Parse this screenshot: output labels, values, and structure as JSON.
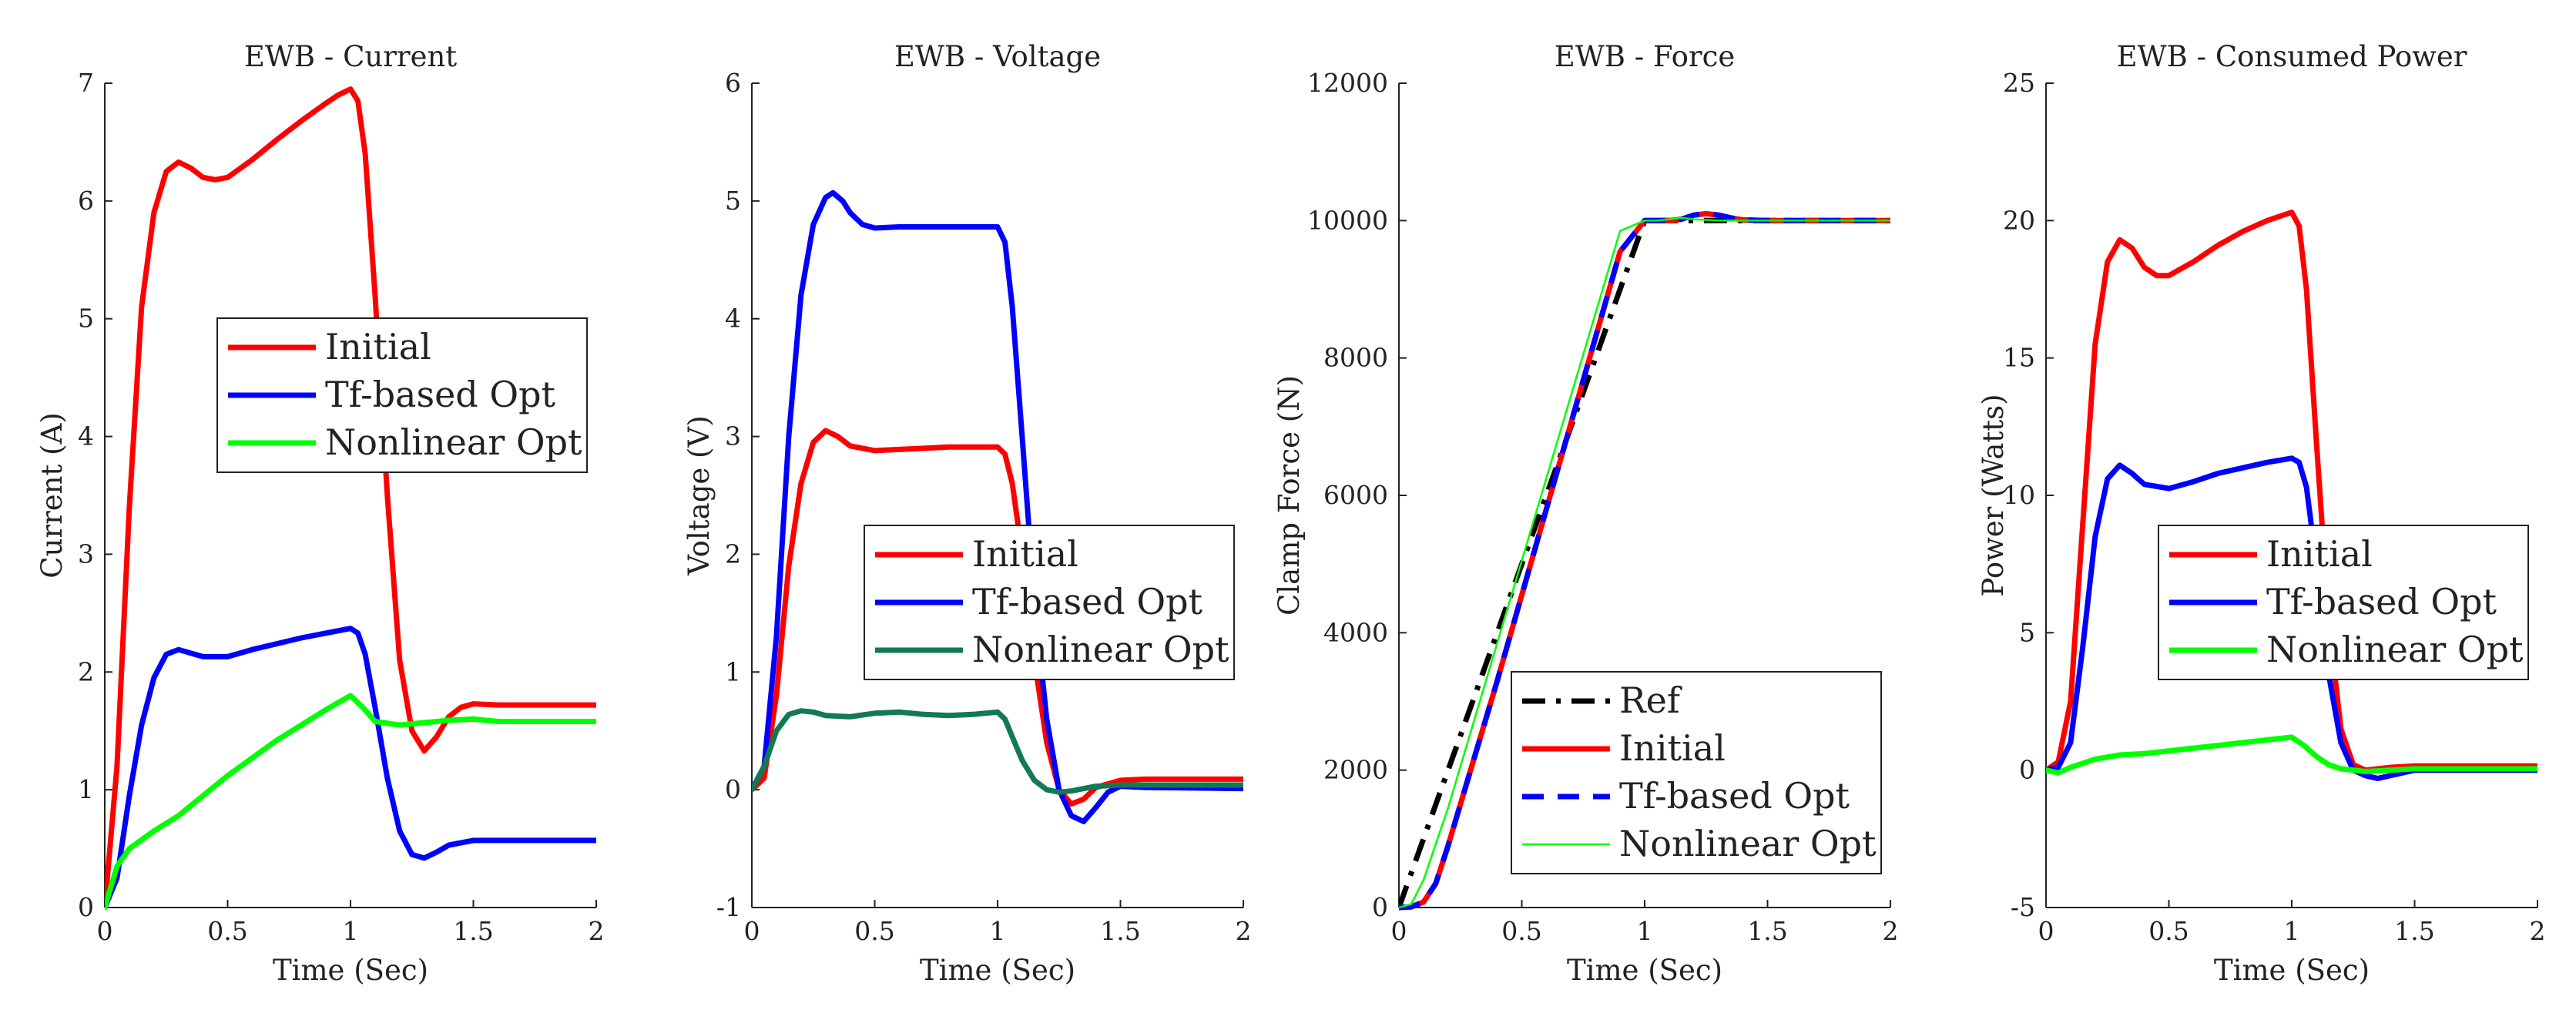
{
  "chart_data": [
    {
      "type": "line",
      "title": "EWB - Current",
      "xlabel": "Time (Sec)",
      "ylabel": "Current (A)",
      "xlim": [
        0,
        2
      ],
      "ylim": [
        0,
        7
      ],
      "xticks": [
        0,
        0.5,
        1,
        1.5,
        2
      ],
      "yticks": [
        0,
        1,
        2,
        3,
        4,
        5,
        6,
        7
      ],
      "xtick_labels": [
        "0",
        "0.5",
        "1",
        "1.5",
        "2"
      ],
      "ytick_labels": [
        "0",
        "1",
        "2",
        "3",
        "4",
        "5",
        "6",
        "7"
      ],
      "legend_position": "center",
      "series": [
        {
          "name": "Initial",
          "color": "#ff0000",
          "dash": "solid",
          "width": "thick",
          "x": [
            0,
            0.05,
            0.1,
            0.15,
            0.2,
            0.25,
            0.3,
            0.35,
            0.4,
            0.45,
            0.5,
            0.6,
            0.7,
            0.8,
            0.9,
            0.95,
            1.0,
            1.03,
            1.06,
            1.1,
            1.15,
            1.2,
            1.25,
            1.3,
            1.35,
            1.4,
            1.45,
            1.5,
            1.6,
            1.8,
            2.0
          ],
          "y": [
            0,
            1.2,
            3.4,
            5.1,
            5.9,
            6.25,
            6.33,
            6.28,
            6.2,
            6.18,
            6.2,
            6.35,
            6.52,
            6.68,
            6.83,
            6.9,
            6.95,
            6.85,
            6.4,
            5.2,
            3.5,
            2.1,
            1.5,
            1.33,
            1.45,
            1.62,
            1.7,
            1.73,
            1.72,
            1.72,
            1.72
          ]
        },
        {
          "name": "Tf-based Opt",
          "color": "#0000ff",
          "dash": "solid",
          "width": "thick",
          "x": [
            0,
            0.05,
            0.1,
            0.15,
            0.2,
            0.25,
            0.3,
            0.35,
            0.4,
            0.5,
            0.6,
            0.7,
            0.8,
            0.9,
            1.0,
            1.03,
            1.06,
            1.1,
            1.15,
            1.2,
            1.25,
            1.3,
            1.35,
            1.4,
            1.5,
            1.6,
            2.0
          ],
          "y": [
            0,
            0.25,
            0.95,
            1.55,
            1.95,
            2.15,
            2.19,
            2.16,
            2.13,
            2.13,
            2.19,
            2.24,
            2.29,
            2.33,
            2.37,
            2.33,
            2.15,
            1.7,
            1.1,
            0.65,
            0.45,
            0.42,
            0.47,
            0.53,
            0.57,
            0.57,
            0.57
          ]
        },
        {
          "name": "Nonlinear Opt",
          "color": "#00ff00",
          "dash": "solid",
          "width": "thick",
          "x": [
            0,
            0.05,
            0.1,
            0.2,
            0.3,
            0.4,
            0.5,
            0.6,
            0.7,
            0.8,
            0.9,
            1.0,
            1.05,
            1.1,
            1.2,
            1.3,
            1.4,
            1.5,
            1.6,
            1.8,
            2.0
          ],
          "y": [
            0,
            0.35,
            0.5,
            0.65,
            0.78,
            0.95,
            1.12,
            1.27,
            1.42,
            1.55,
            1.68,
            1.8,
            1.7,
            1.58,
            1.55,
            1.57,
            1.59,
            1.6,
            1.58,
            1.58,
            1.58
          ]
        }
      ]
    },
    {
      "type": "line",
      "title": "EWB - Voltage",
      "xlabel": "Time (Sec)",
      "ylabel": "Voltage (V)",
      "xlim": [
        0,
        2
      ],
      "ylim": [
        -1,
        6
      ],
      "xticks": [
        0,
        0.5,
        1,
        1.5,
        2
      ],
      "yticks": [
        -1,
        0,
        1,
        2,
        3,
        4,
        5,
        6
      ],
      "xtick_labels": [
        "0",
        "0.5",
        "1",
        "1.5",
        "2"
      ],
      "ytick_labels": [
        "-1",
        "0",
        "1",
        "2",
        "3",
        "4",
        "5",
        "6"
      ],
      "legend_position": "center-right",
      "series": [
        {
          "name": "Initial",
          "color": "#ff0000",
          "dash": "solid",
          "width": "thick",
          "x": [
            0,
            0.05,
            0.1,
            0.15,
            0.2,
            0.25,
            0.3,
            0.35,
            0.4,
            0.5,
            0.6,
            0.7,
            0.8,
            0.9,
            1.0,
            1.03,
            1.06,
            1.1,
            1.15,
            1.2,
            1.25,
            1.3,
            1.35,
            1.4,
            1.5,
            1.6,
            2.0
          ],
          "y": [
            0,
            0.1,
            0.8,
            1.9,
            2.6,
            2.95,
            3.05,
            3.0,
            2.92,
            2.88,
            2.89,
            2.9,
            2.91,
            2.91,
            2.91,
            2.85,
            2.6,
            2.0,
            1.1,
            0.4,
            0.0,
            -0.12,
            -0.08,
            0.02,
            0.08,
            0.09,
            0.09
          ]
        },
        {
          "name": "Tf-based Opt",
          "color": "#0000ff",
          "dash": "solid",
          "width": "thick",
          "x": [
            0,
            0.05,
            0.1,
            0.15,
            0.2,
            0.25,
            0.3,
            0.33,
            0.37,
            0.4,
            0.45,
            0.5,
            0.6,
            0.8,
            1.0,
            1.03,
            1.06,
            1.1,
            1.15,
            1.2,
            1.25,
            1.3,
            1.35,
            1.4,
            1.45,
            1.5,
            1.6,
            2.0
          ],
          "y": [
            0,
            0.2,
            1.3,
            3.0,
            4.2,
            4.8,
            5.03,
            5.07,
            5.0,
            4.9,
            4.8,
            4.77,
            4.78,
            4.78,
            4.78,
            4.65,
            4.1,
            3.0,
            1.6,
            0.6,
            0.0,
            -0.22,
            -0.27,
            -0.15,
            -0.02,
            0.03,
            0.02,
            0.01
          ]
        },
        {
          "name": "Nonlinear Opt",
          "color": "#117a53",
          "dash": "solid",
          "width": "thick",
          "x": [
            0,
            0.05,
            0.1,
            0.15,
            0.2,
            0.25,
            0.3,
            0.4,
            0.5,
            0.6,
            0.7,
            0.8,
            0.9,
            1.0,
            1.03,
            1.06,
            1.1,
            1.15,
            1.2,
            1.25,
            1.3,
            1.4,
            1.5,
            1.6,
            2.0
          ],
          "y": [
            0,
            0.2,
            0.5,
            0.64,
            0.67,
            0.66,
            0.63,
            0.62,
            0.65,
            0.66,
            0.64,
            0.63,
            0.64,
            0.66,
            0.6,
            0.45,
            0.25,
            0.08,
            0.0,
            -0.02,
            -0.01,
            0.03,
            0.04,
            0.04,
            0.04
          ]
        }
      ]
    },
    {
      "type": "line",
      "title": "EWB - Force",
      "xlabel": "Time (Sec)",
      "ylabel": "Clamp Force (N)",
      "xlim": [
        0,
        2
      ],
      "ylim": [
        0,
        12000
      ],
      "xticks": [
        0,
        0.5,
        1,
        1.5,
        2
      ],
      "yticks": [
        0,
        2000,
        4000,
        6000,
        8000,
        10000,
        12000
      ],
      "xtick_labels": [
        "0",
        "0.5",
        "1",
        "1.5",
        "2"
      ],
      "ytick_labels": [
        "0",
        "2000",
        "4000",
        "6000",
        "8000",
        "10000",
        "12000"
      ],
      "legend_position": "bottom-right",
      "series": [
        {
          "name": "Ref",
          "color": "#000000",
          "dash": "dashdot",
          "width": "thick",
          "x": [
            0,
            1,
            2
          ],
          "y": [
            0,
            10000,
            10000
          ]
        },
        {
          "name": "Initial",
          "color": "#ff0000",
          "dash": "solid",
          "width": "thick",
          "x": [
            0,
            0.05,
            0.1,
            0.15,
            0.2,
            0.3,
            0.4,
            0.5,
            0.6,
            0.7,
            0.8,
            0.9,
            1.0,
            1.1,
            1.15,
            1.2,
            1.25,
            1.3,
            1.35,
            1.4,
            1.5,
            2.0
          ],
          "y": [
            0,
            10,
            80,
            350,
            900,
            2100,
            3300,
            4550,
            5800,
            7050,
            8300,
            9550,
            10000,
            10000,
            10020,
            10080,
            10100,
            10080,
            10040,
            10010,
            10000,
            10000
          ]
        },
        {
          "name": "Tf-based Opt",
          "color": "#0000ff",
          "dash": "dash",
          "width": "thick",
          "x": [
            0,
            0.05,
            0.1,
            0.15,
            0.2,
            0.3,
            0.4,
            0.5,
            0.6,
            0.7,
            0.8,
            0.9,
            1.0,
            1.1,
            1.15,
            1.2,
            1.25,
            1.3,
            1.35,
            1.4,
            1.5,
            2.0
          ],
          "y": [
            0,
            10,
            80,
            350,
            900,
            2100,
            3300,
            4550,
            5800,
            7050,
            8300,
            9550,
            10000,
            10000,
            10020,
            10080,
            10100,
            10080,
            10040,
            10010,
            10000,
            10000
          ]
        },
        {
          "name": "Nonlinear Opt",
          "color": "#00ff00",
          "dash": "solid",
          "width": "thin",
          "x": [
            0,
            0.05,
            0.1,
            0.2,
            0.3,
            0.4,
            0.5,
            0.6,
            0.7,
            0.8,
            0.9,
            1.0,
            1.05,
            1.1,
            1.15,
            1.2,
            1.3,
            2.0
          ],
          "y": [
            0,
            50,
            400,
            1450,
            2650,
            3850,
            5050,
            6250,
            7450,
            8650,
            9850,
            10000,
            10000,
            10020,
            10040,
            10020,
            10000,
            10000
          ]
        }
      ]
    },
    {
      "type": "line",
      "title": "EWB - Consumed Power",
      "xlabel": "Time (Sec)",
      "ylabel": "Power (Watts)",
      "xlim": [
        0,
        2
      ],
      "ylim": [
        -5,
        25
      ],
      "xticks": [
        0,
        0.5,
        1,
        1.5,
        2
      ],
      "yticks": [
        -5,
        0,
        5,
        10,
        15,
        20,
        25
      ],
      "xtick_labels": [
        "0",
        "0.5",
        "1",
        "1.5",
        "2"
      ],
      "ytick_labels": [
        "-5",
        "0",
        "5",
        "10",
        "15",
        "20",
        "25"
      ],
      "legend_position": "center-right",
      "series": [
        {
          "name": "Initial",
          "color": "#ff0000",
          "dash": "solid",
          "width": "thick",
          "x": [
            0,
            0.05,
            0.1,
            0.15,
            0.2,
            0.25,
            0.3,
            0.35,
            0.4,
            0.45,
            0.5,
            0.6,
            0.7,
            0.8,
            0.9,
            1.0,
            1.03,
            1.06,
            1.1,
            1.15,
            1.2,
            1.25,
            1.3,
            1.4,
            1.5,
            2.0
          ],
          "y": [
            0,
            0.3,
            2.5,
            9.0,
            15.5,
            18.5,
            19.3,
            19.0,
            18.3,
            18.0,
            18.0,
            18.5,
            19.1,
            19.6,
            20.0,
            20.3,
            19.8,
            17.5,
            12.0,
            5.5,
            1.5,
            0.2,
            0.0,
            0.1,
            0.15,
            0.15
          ]
        },
        {
          "name": "Tf-based Opt",
          "color": "#0000ff",
          "dash": "solid",
          "width": "thick",
          "x": [
            0,
            0.05,
            0.1,
            0.15,
            0.2,
            0.25,
            0.3,
            0.35,
            0.4,
            0.5,
            0.6,
            0.7,
            0.8,
            0.9,
            1.0,
            1.03,
            1.06,
            1.1,
            1.15,
            1.2,
            1.25,
            1.3,
            1.35,
            1.4,
            1.5,
            2.0
          ],
          "y": [
            0,
            0.1,
            1.0,
            4.5,
            8.5,
            10.6,
            11.1,
            10.8,
            10.4,
            10.25,
            10.5,
            10.8,
            11.0,
            11.2,
            11.35,
            11.2,
            10.3,
            7.5,
            3.5,
            1.0,
            0.0,
            -0.2,
            -0.3,
            -0.2,
            0.0,
            0.0
          ]
        },
        {
          "name": "Nonlinear Opt",
          "color": "#00ff00",
          "dash": "solid",
          "width": "thick",
          "x": [
            0,
            0.05,
            0.1,
            0.2,
            0.3,
            0.4,
            0.5,
            0.6,
            0.7,
            0.8,
            0.9,
            1.0,
            1.05,
            1.1,
            1.15,
            1.2,
            1.3,
            1.4,
            1.5,
            2.0
          ],
          "y": [
            0,
            -0.1,
            0.1,
            0.4,
            0.55,
            0.6,
            0.7,
            0.8,
            0.9,
            1.0,
            1.1,
            1.2,
            0.9,
            0.5,
            0.2,
            0.05,
            -0.05,
            0.0,
            0.05,
            0.05
          ]
        }
      ]
    }
  ]
}
